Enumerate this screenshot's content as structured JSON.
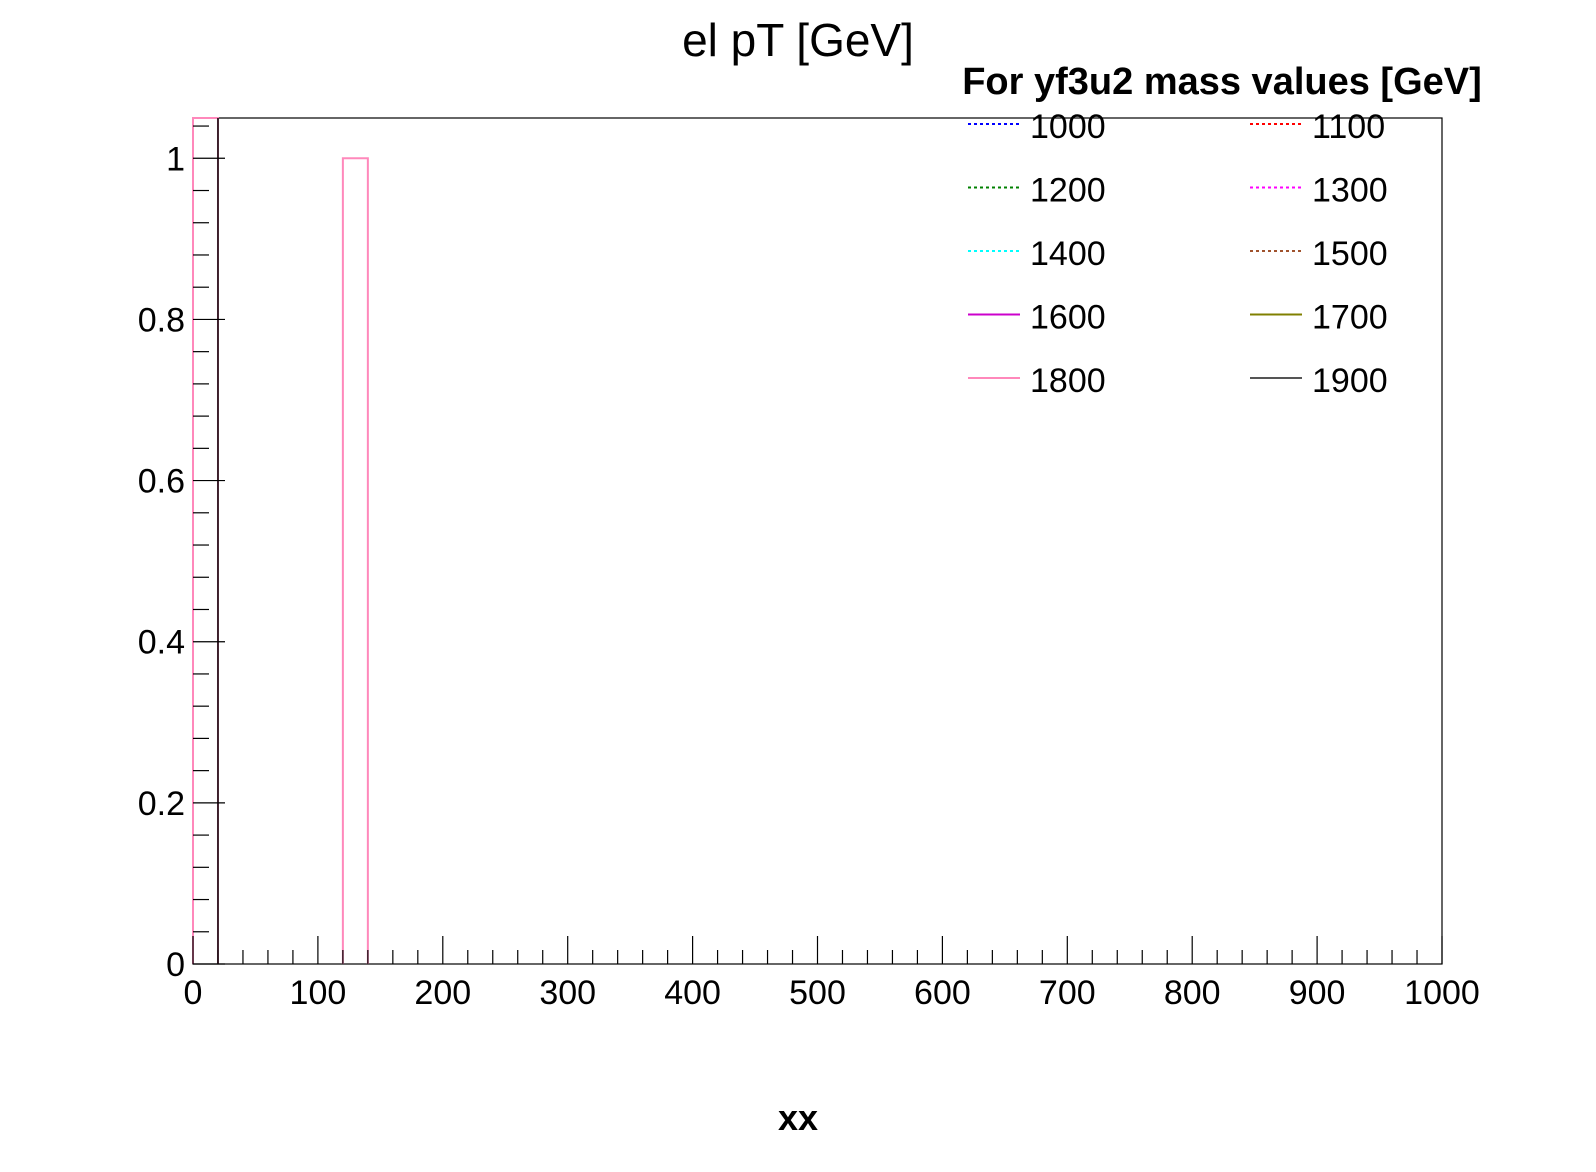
{
  "chart_data": {
    "type": "histogram",
    "title": "el pT [GeV]",
    "xlabel": "xx",
    "ylabel": "",
    "xlim": [
      0,
      1000
    ],
    "ylim": [
      0,
      1.05
    ],
    "x_ticks": [
      0,
      100,
      200,
      300,
      400,
      500,
      600,
      700,
      800,
      900,
      1000
    ],
    "x_tick_labels": [
      "0",
      "100",
      "200",
      "300",
      "400",
      "500",
      "600",
      "700",
      "800",
      "900",
      "1000"
    ],
    "y_ticks": [
      0,
      0.2,
      0.4,
      0.6,
      0.8,
      1
    ],
    "y_tick_labels": [
      "0",
      "0.2",
      "0.4",
      "0.6",
      "0.8",
      "1"
    ],
    "legend": {
      "title": "For yf3u2 mass values [GeV]",
      "placement": "top-right",
      "columns": 2
    },
    "series": [
      {
        "name": "1000",
        "color": "#0000ff",
        "dash": "dotted",
        "bins": []
      },
      {
        "name": "1100",
        "color": "#ff0000",
        "dash": "dotted",
        "bins": []
      },
      {
        "name": "1200",
        "color": "#008000",
        "dash": "dotted",
        "bins": []
      },
      {
        "name": "1300",
        "color": "#ff00ff",
        "dash": "dotted",
        "bins": []
      },
      {
        "name": "1400",
        "color": "#00ffff",
        "dash": "dotted",
        "bins": []
      },
      {
        "name": "1500",
        "color": "#a0522d",
        "dash": "dotted",
        "bins": []
      },
      {
        "name": "1600",
        "color": "#cc00cc",
        "dash": "solid",
        "bins": []
      },
      {
        "name": "1700",
        "color": "#808000",
        "dash": "solid",
        "bins": []
      },
      {
        "name": "1800",
        "color": "#ff88bb",
        "dash": "solid",
        "bins": [
          {
            "x0": 0,
            "x1": 20,
            "value": 1.05
          },
          {
            "x0": 120,
            "x1": 140,
            "value": 1
          }
        ]
      },
      {
        "name": "1900",
        "color": "#555555",
        "dash": "solid",
        "bins": []
      }
    ]
  }
}
